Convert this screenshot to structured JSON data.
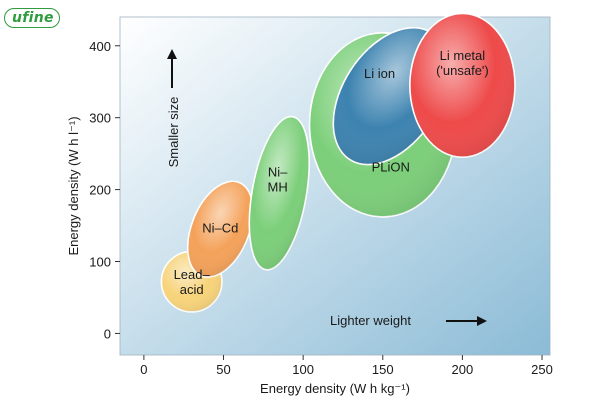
{
  "logo": {
    "text": "ufine",
    "color": "#2e9c3f"
  },
  "chart_data": {
    "type": "scatter",
    "title": "",
    "xlabel": "Energy density (W h kg⁻¹)",
    "ylabel": "Energy density (W h l⁻¹)",
    "xlim": [
      -15,
      255
    ],
    "ylim": [
      -30,
      440
    ],
    "x_ticks": [
      0,
      50,
      100,
      150,
      200,
      250
    ],
    "y_ticks": [
      0,
      100,
      200,
      300,
      400
    ],
    "grid": false,
    "background_gradient": [
      "#ffffff",
      "#8bbbd6"
    ],
    "regions": [
      {
        "name": "Lead–acid",
        "label_lines": [
          "Lead–",
          "acid"
        ],
        "center": [
          30,
          72
        ],
        "semi_axes": [
          19,
          42
        ],
        "rotation_deg": 0,
        "fill": "#f7d37a"
      },
      {
        "name": "Ni–Cd",
        "label_lines": [
          "Ni–Cd"
        ],
        "center": [
          48,
          145
        ],
        "semi_axes": [
          18,
          70
        ],
        "rotation_deg": 22,
        "fill": "#f4a25a"
      },
      {
        "name": "Ni–MH",
        "label_lines": [
          "Ni–",
          "MH"
        ],
        "center": [
          85,
          195
        ],
        "semi_axes": [
          17,
          108
        ],
        "rotation_deg": 10,
        "fill": "#7ccf7a"
      },
      {
        "name": "PLiON",
        "label_lines": [
          "PLiON"
        ],
        "center": [
          150,
          290
        ],
        "semi_axes": [
          46,
          128
        ],
        "rotation_deg": 0,
        "fill": "#7ccf7a"
      },
      {
        "name": "Li ion",
        "label_lines": [
          "Li ion"
        ],
        "center": [
          155,
          330
        ],
        "semi_axes": [
          30,
          105
        ],
        "rotation_deg": 33,
        "fill": "#3d83b0"
      },
      {
        "name": "Li metal ('unsafe')",
        "label_lines": [
          "Li metal",
          "('unsafe')"
        ],
        "center": [
          200,
          345
        ],
        "semi_axes": [
          33,
          100
        ],
        "rotation_deg": 0,
        "fill": "#ee4a4a"
      }
    ],
    "annotations": [
      {
        "text": "Smaller size",
        "direction": "up"
      },
      {
        "text": "Lighter weight",
        "direction": "right"
      }
    ]
  }
}
